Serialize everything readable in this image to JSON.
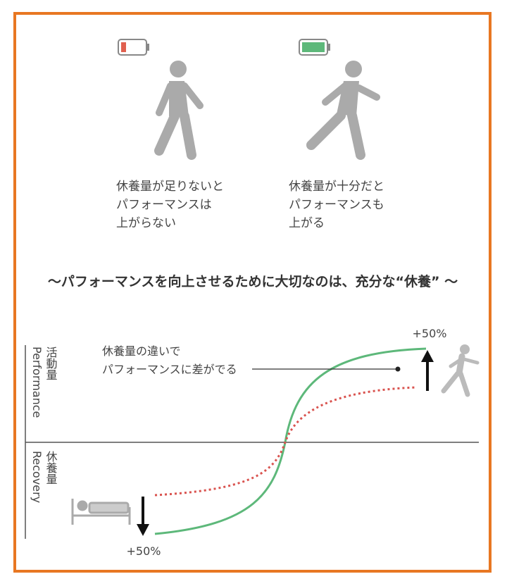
{
  "captions": [
    {
      "lines": [
        "休養量が足りないと",
        "パフォーマンスは",
        "上がらない"
      ]
    },
    {
      "lines": [
        "休養量が十分だと",
        "パフォーマンスも",
        "上がる"
      ]
    }
  ],
  "headline": "～パフォーマンスを向上させるために大切なのは、充分な“休養” ～",
  "graph": {
    "upper_label_ja": "活動量",
    "upper_label_en": "Performance",
    "lower_label_ja": "休養量",
    "lower_label_en": "Recovery",
    "annotation": [
      "休養量の違いで",
      "パフォーマンスに差がでる"
    ],
    "top_change": "+50%",
    "bottom_change": "+50%"
  }
}
